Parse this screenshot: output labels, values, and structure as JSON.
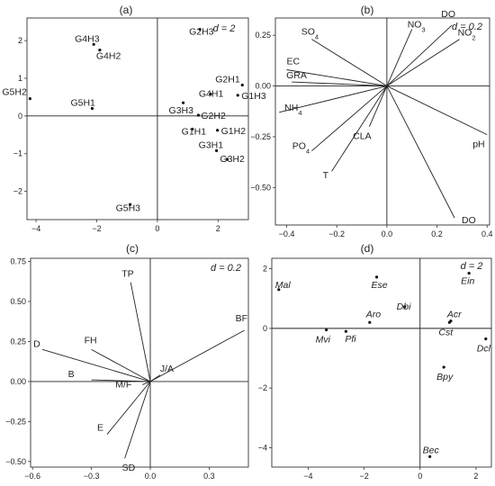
{
  "chart_data": [
    {
      "type": "scatter",
      "panel": "(a)",
      "scale_note": "d = 2",
      "xlim": [
        -4.3,
        3.0
      ],
      "ylim": [
        -2.75,
        2.6
      ],
      "x_ticks": [
        -4,
        -2,
        0,
        2
      ],
      "y_ticks": [
        -2,
        -1,
        0,
        1,
        2
      ],
      "points": [
        {
          "label": "G2H3",
          "x": 1.4,
          "y": 2.3
        },
        {
          "label": "G4H3",
          "x": -2.1,
          "y": 1.9
        },
        {
          "label": "G4H2",
          "x": -1.9,
          "y": 1.75
        },
        {
          "label": "G2H1",
          "x": 2.8,
          "y": 0.82
        },
        {
          "label": "G5H2",
          "x": -4.2,
          "y": 0.46
        },
        {
          "label": "G5H1",
          "x": -2.15,
          "y": 0.2
        },
        {
          "label": "G4H1",
          "x": 1.75,
          "y": 0.58
        },
        {
          "label": "G1H3",
          "x": 2.65,
          "y": 0.55
        },
        {
          "label": "G3H3",
          "x": 0.85,
          "y": 0.35
        },
        {
          "label": "G2H2",
          "x": 1.35,
          "y": 0.02
        },
        {
          "label": "G1H1",
          "x": 1.15,
          "y": -0.35
        },
        {
          "label": "G1H2",
          "x": 1.98,
          "y": -0.38
        },
        {
          "label": "G3H1",
          "x": 1.95,
          "y": -0.92
        },
        {
          "label": "G3H2",
          "x": 2.3,
          "y": -1.15
        },
        {
          "label": "G5H3",
          "x": -0.9,
          "y": -2.35
        }
      ]
    },
    {
      "type": "vector",
      "panel": "(b)",
      "scale_note": "d = 0.2",
      "xlim": [
        -0.445,
        0.41
      ],
      "ylim": [
        -0.685,
        0.335
      ],
      "x_ticks": [
        -0.4,
        -0.2,
        0.0,
        0.2,
        0.4
      ],
      "x_tick_labels": [
        "−0.4",
        "−0.2",
        "0.0",
        "0.2",
        "0.4"
      ],
      "y_ticks": [
        0.25,
        0.0,
        -0.25,
        -0.5
      ],
      "y_tick_labels": [
        "0.25",
        "0.00",
        "−0.25",
        "−0.50"
      ],
      "vectors": [
        {
          "label": "SO4",
          "x": -0.3,
          "y": 0.23
        },
        {
          "label": "NO3",
          "x": 0.1,
          "y": 0.28
        },
        {
          "label": "DO",
          "x": 0.26,
          "y": 0.3
        },
        {
          "label": "NO2",
          "x": 0.29,
          "y": 0.23
        },
        {
          "label": "EC",
          "x": -0.4,
          "y": 0.08
        },
        {
          "label": "GRA",
          "x": -0.38,
          "y": 0.02
        },
        {
          "label": "NH4",
          "x": -0.43,
          "y": -0.13
        },
        {
          "label": "PO4",
          "x": -0.3,
          "y": -0.32
        },
        {
          "label": "CLA",
          "x": -0.07,
          "y": -0.2
        },
        {
          "label": "T",
          "x": -0.22,
          "y": -0.42
        },
        {
          "label": "pH",
          "x": 0.4,
          "y": -0.24
        },
        {
          "label": "DO",
          "x": 0.27,
          "y": -0.65
        }
      ]
    },
    {
      "type": "vector",
      "panel": "(c)",
      "scale_note": "d = 0.2",
      "xlim": [
        -0.61,
        0.5
      ],
      "ylim": [
        -0.535,
        0.77
      ],
      "x_ticks": [
        -0.6,
        -0.3,
        0.0,
        0.3
      ],
      "x_tick_labels": [
        "−0.6",
        "−0.3",
        "0.0",
        "0.3"
      ],
      "y_ticks": [
        0.75,
        0.5,
        0.25,
        0.0,
        -0.25,
        -0.5
      ],
      "y_tick_labels": [
        "0.75",
        "0.50",
        "0.25",
        "0.00",
        "−0.25",
        "−0.50"
      ],
      "vectors": [
        {
          "label": "TP",
          "x": -0.1,
          "y": 0.62
        },
        {
          "label": "BF",
          "x": 0.48,
          "y": 0.32
        },
        {
          "label": "D",
          "x": -0.55,
          "y": 0.2
        },
        {
          "label": "FH",
          "x": -0.3,
          "y": 0.2
        },
        {
          "label": "B",
          "x": -0.3,
          "y": 0.01
        },
        {
          "label": "J/A",
          "x": 0.05,
          "y": 0.04
        },
        {
          "label": "M/F",
          "x": -0.04,
          "y": -0.02
        },
        {
          "label": "E",
          "x": -0.22,
          "y": -0.33
        },
        {
          "label": "SD",
          "x": -0.13,
          "y": -0.48
        }
      ]
    },
    {
      "type": "scatter",
      "panel": "(d)",
      "scale_note": "d = 2",
      "xlim": [
        -5.3,
        2.55
      ],
      "ylim": [
        -4.65,
        2.35
      ],
      "x_ticks": [
        -4,
        -2,
        0,
        2
      ],
      "y_ticks": [
        2,
        0,
        -2,
        -4
      ],
      "points": [
        {
          "label": "Mal",
          "x": -5.05,
          "y": 1.3
        },
        {
          "label": "Ese",
          "x": -1.55,
          "y": 1.72
        },
        {
          "label": "Dbi",
          "x": -0.55,
          "y": 0.72
        },
        {
          "label": "Aro",
          "x": -1.8,
          "y": 0.2
        },
        {
          "label": "Mvi",
          "x": -3.35,
          "y": -0.05
        },
        {
          "label": "Pfi",
          "x": -2.65,
          "y": -0.1
        },
        {
          "label": "Ein",
          "x": 1.75,
          "y": 1.85
        },
        {
          "label": "Acr",
          "x": 1.1,
          "y": 0.25
        },
        {
          "label": "Cst",
          "x": 1.05,
          "y": 0.2
        },
        {
          "label": "Dcl",
          "x": 2.35,
          "y": -0.35
        },
        {
          "label": "Bpy",
          "x": 0.85,
          "y": -1.3
        },
        {
          "label": "Bec",
          "x": 0.35,
          "y": -4.3
        }
      ]
    }
  ]
}
